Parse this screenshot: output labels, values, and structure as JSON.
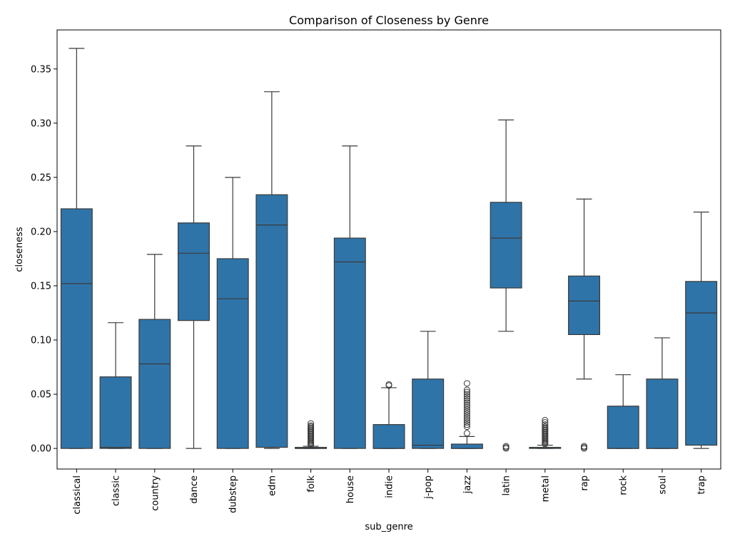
{
  "chart_data": {
    "type": "box",
    "title": "Comparison of Closeness by Genre",
    "xlabel": "sub_genre",
    "ylabel": "closeness",
    "ylim": [
      -0.019,
      0.386
    ],
    "yticks": [
      0.0,
      0.05,
      0.1,
      0.15,
      0.2,
      0.25,
      0.3,
      0.35
    ],
    "ytick_labels": [
      "0.00",
      "0.05",
      "0.10",
      "0.15",
      "0.20",
      "0.25",
      "0.30",
      "0.35"
    ],
    "grid": false,
    "box_color": "#2f74a8",
    "line_color": "#3a3a3a",
    "categories": [
      "classical",
      "classic",
      "country",
      "dance",
      "dubstep",
      "edm",
      "folk",
      "house",
      "indie",
      "j-pop",
      "jazz",
      "latin",
      "metal",
      "rap",
      "rock",
      "soul",
      "trap"
    ],
    "boxes": [
      {
        "whislo": 0.0,
        "q1": 0.0,
        "med": 0.152,
        "q3": 0.221,
        "whishi": 0.369,
        "fliers": []
      },
      {
        "whislo": 0.0,
        "q1": 0.0,
        "med": 0.001,
        "q3": 0.066,
        "whishi": 0.116,
        "fliers": []
      },
      {
        "whislo": 0.0,
        "q1": 0.0,
        "med": 0.078,
        "q3": 0.119,
        "whishi": 0.179,
        "fliers": []
      },
      {
        "whislo": 0.0,
        "q1": 0.118,
        "med": 0.18,
        "q3": 0.208,
        "whishi": 0.279,
        "fliers": []
      },
      {
        "whislo": 0.0,
        "q1": 0.0,
        "med": 0.138,
        "q3": 0.175,
        "whishi": 0.25,
        "fliers": []
      },
      {
        "whislo": 0.0,
        "q1": 0.001,
        "med": 0.206,
        "q3": 0.234,
        "whishi": 0.329,
        "fliers": []
      },
      {
        "whislo": 0.0,
        "q1": 0.0,
        "med": 0.0,
        "q3": 0.001,
        "whishi": 0.002,
        "fliers": [
          0.003,
          0.004,
          0.005,
          0.006,
          0.007,
          0.008,
          0.009,
          0.01,
          0.011,
          0.012,
          0.013,
          0.014,
          0.015,
          0.016,
          0.017,
          0.018,
          0.019,
          0.02,
          0.021,
          0.023
        ]
      },
      {
        "whislo": 0.0,
        "q1": 0.0,
        "med": 0.172,
        "q3": 0.194,
        "whishi": 0.279,
        "fliers": []
      },
      {
        "whislo": 0.0,
        "q1": 0.0,
        "med": 0.0,
        "q3": 0.022,
        "whishi": 0.056,
        "fliers": [
          0.058,
          0.059
        ]
      },
      {
        "whislo": 0.0,
        "q1": 0.0,
        "med": 0.003,
        "q3": 0.064,
        "whishi": 0.108,
        "fliers": []
      },
      {
        "whislo": 0.0,
        "q1": 0.0,
        "med": 0.0,
        "q3": 0.004,
        "whishi": 0.011,
        "fliers": [
          0.014,
          0.02,
          0.022,
          0.024,
          0.026,
          0.028,
          0.03,
          0.032,
          0.034,
          0.036,
          0.038,
          0.04,
          0.042,
          0.044,
          0.046,
          0.048,
          0.05,
          0.052,
          0.054,
          0.06
        ]
      },
      {
        "whislo": 0.108,
        "q1": 0.148,
        "med": 0.194,
        "q3": 0.227,
        "whishi": 0.303,
        "fliers": [
          0.0,
          0.001,
          0.002
        ]
      },
      {
        "whislo": 0.0,
        "q1": 0.0,
        "med": 0.001,
        "q3": 0.001,
        "whishi": 0.003,
        "fliers": [
          0.004,
          0.005,
          0.006,
          0.007,
          0.008,
          0.009,
          0.01,
          0.011,
          0.012,
          0.013,
          0.014,
          0.015,
          0.016,
          0.017,
          0.018,
          0.019,
          0.02,
          0.022,
          0.024,
          0.026
        ]
      },
      {
        "whislo": 0.064,
        "q1": 0.105,
        "med": 0.136,
        "q3": 0.159,
        "whishi": 0.23,
        "fliers": [
          0.0,
          0.001,
          0.002
        ]
      },
      {
        "whislo": 0.0,
        "q1": 0.0,
        "med": 0.0,
        "q3": 0.039,
        "whishi": 0.068,
        "fliers": []
      },
      {
        "whislo": 0.0,
        "q1": 0.0,
        "med": 0.0,
        "q3": 0.064,
        "whishi": 0.102,
        "fliers": []
      },
      {
        "whislo": 0.0,
        "q1": 0.003,
        "med": 0.125,
        "q3": 0.154,
        "whishi": 0.218,
        "fliers": []
      }
    ]
  }
}
